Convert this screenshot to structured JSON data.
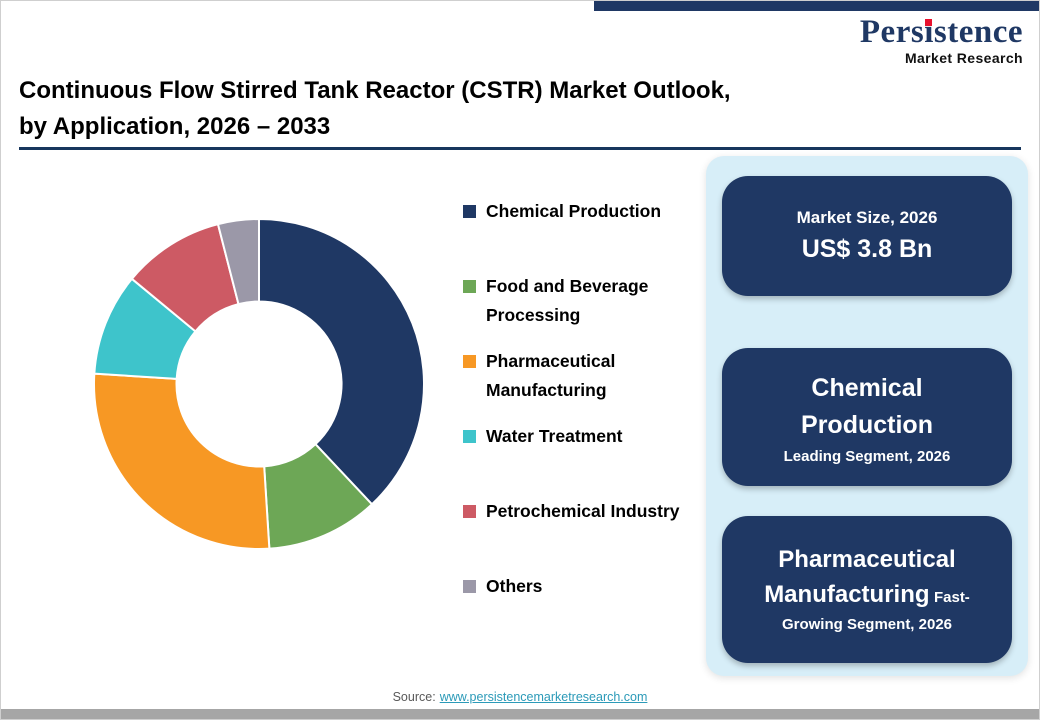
{
  "colors": {
    "navy": "#1F3864",
    "panel_bg": "#D7EEF8",
    "top_bar": "#1F3864",
    "bottom_bar": "#A6A6A6",
    "logo_red": "#E8112D",
    "link": "#2B9AB8",
    "title_rule": "#17365D"
  },
  "logo": {
    "pre": "Pers",
    "i": "ı",
    "post": "stence",
    "full_name": "Persistence",
    "subtitle": "Market Research"
  },
  "header": {
    "title_line1": "Continuous Flow Stirred Tank Reactor (CSTR) Market Outlook,",
    "title_line2": "by Application, 2026 – 2033"
  },
  "chart_data": {
    "type": "pie",
    "donut": true,
    "title": "Continuous Flow Stirred Tank Reactor (CSTR) Market Outlook, by Application, 2026 – 2033",
    "categories": [
      "Chemical Production",
      "Food and Beverage Processing",
      "Pharmaceutical Manufacturing",
      "Water Treatment",
      "Petrochemical Industry",
      "Others"
    ],
    "values": [
      38,
      11,
      27,
      10,
      10,
      4
    ],
    "unit": "% share (estimated from arc angles; no data labels shown)",
    "colors": [
      "#1F3864",
      "#6DA756",
      "#F79824",
      "#3EC4CB",
      "#CD5A64",
      "#9B98A8"
    ],
    "legend_position": "right",
    "inner_radius_ratio": 0.5,
    "start_angle": "top",
    "direction": "clockwise"
  },
  "panel": {
    "boxes": [
      {
        "label": "Market Size, 2026",
        "value": "US$ 3.8 Bn"
      },
      {
        "title": "Chemical Production",
        "subtitle": "Leading Segment, 2026"
      },
      {
        "title": "Pharmaceutical Manufacturing",
        "subtitle": "Fast-Growing Segment, 2026"
      }
    ]
  },
  "footer": {
    "source_label": "Source:",
    "source_link": "www.persistencemarketresearch.com"
  }
}
